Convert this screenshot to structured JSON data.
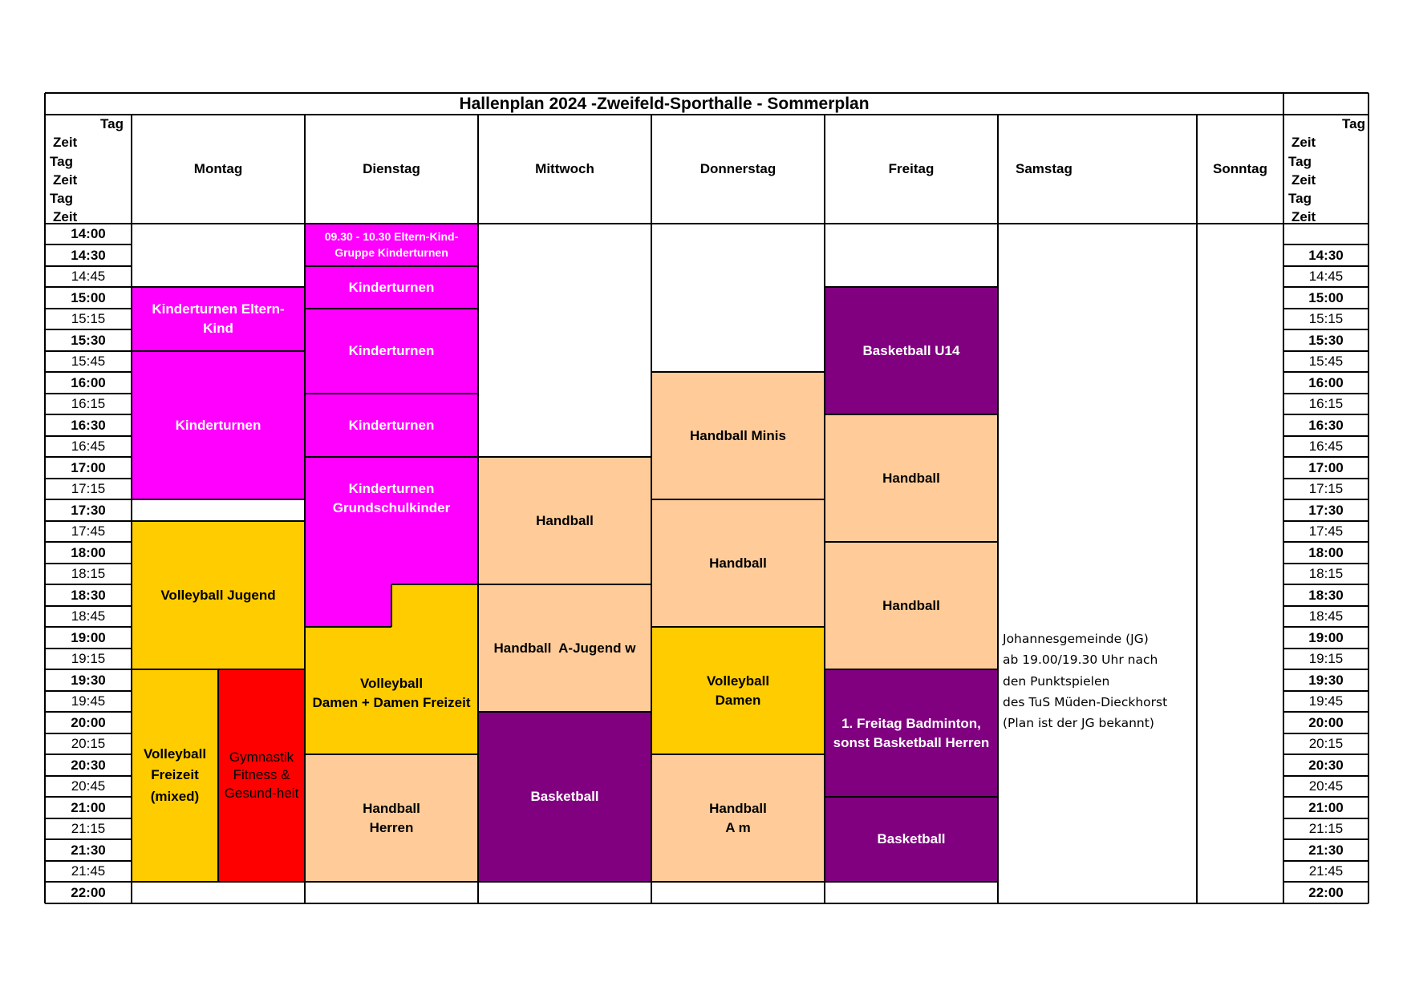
{
  "title": "Hallenplan 2024 -Zweifeld-Sporthalle - Sommerplan",
  "corner_left": [
    "Tag",
    "Zeit",
    "Tag",
    "Zeit",
    "Tag",
    "Zeit"
  ],
  "corner_right": [
    "Tag",
    "Zeit",
    "Tag",
    "Zeit",
    "Tag",
    "Zeit"
  ],
  "days": [
    "Montag",
    "Dienstag",
    "Mittwoch",
    "Donnerstag",
    "Freitag",
    "Samstag",
    "Sonntag"
  ],
  "times_left": [
    "14:00",
    "14:30",
    "14:45",
    "15:00",
    "15:15",
    "15:30",
    "15:45",
    "16:00",
    "16:15",
    "16:30",
    "16:45",
    "17:00",
    "17:15",
    "17:30",
    "17:45",
    "18:00",
    "18:15",
    "18:30",
    "18:45",
    "19:00",
    "19:15",
    "19:30",
    "19:45",
    "20:00",
    "20:15",
    "20:30",
    "20:45",
    "21:00",
    "21:15",
    "21:30",
    "21:45",
    "22:00"
  ],
  "times_right": [
    "",
    "14:30",
    "14:45",
    "15:00",
    "15:15",
    "15:30",
    "15:45",
    "16:00",
    "16:15",
    "16:30",
    "16:45",
    "17:00",
    "17:15",
    "17:30",
    "17:45",
    "18:00",
    "18:15",
    "18:30",
    "18:45",
    "19:00",
    "19:15",
    "19:30",
    "19:45",
    "20:00",
    "20:15",
    "20:30",
    "20:45",
    "21:00",
    "21:15",
    "21:30",
    "21:45",
    "22:00"
  ],
  "colors": {
    "magenta": "#ff00ff",
    "purple": "#800080",
    "peach": "#ffcc99",
    "yellow": "#ffcc00",
    "red": "#ff0000"
  },
  "blocks": [
    {
      "name": "mo-eltern-kind",
      "lines": [
        "Kinderturnen Eltern-",
        "Kind"
      ],
      "color": "magenta",
      "text": "white"
    },
    {
      "name": "mo-kinderturnen",
      "lines": [
        "Kinderturnen"
      ],
      "color": "magenta",
      "text": "white"
    },
    {
      "name": "mo-volleyball-jugend",
      "lines": [
        "Volleyball Jugend"
      ],
      "color": "yellow",
      "text": "black"
    },
    {
      "name": "mo-volleyball-freizeit",
      "lines": [
        "Volleyball",
        "Freizeit",
        "(mixed)"
      ],
      "color": "yellow",
      "text": "black"
    },
    {
      "name": "mo-gymnastik",
      "lines": [
        "Gymnastik",
        "Fitness &",
        "Gesund-heit"
      ],
      "color": "red",
      "text": "black"
    },
    {
      "name": "di-eltern-kind-gruppe",
      "lines": [
        "09.30 - 10.30 Eltern-Kind-",
        "Gruppe Kinderturnen"
      ],
      "color": "magenta",
      "text": "white"
    },
    {
      "name": "di-kinderturnen-1",
      "lines": [
        "Kinderturnen"
      ],
      "color": "magenta",
      "text": "white"
    },
    {
      "name": "di-kinderturnen-2",
      "lines": [
        "Kinderturnen"
      ],
      "color": "magenta",
      "text": "white"
    },
    {
      "name": "di-kinderturnen-3",
      "lines": [
        "Kinderturnen"
      ],
      "color": "magenta",
      "text": "white"
    },
    {
      "name": "di-grundschulkinder",
      "lines": [
        "Kinderturnen",
        "Grundschulkinder"
      ],
      "color": "magenta",
      "text": "white"
    },
    {
      "name": "di-volleyball-damen",
      "lines": [
        "Volleyball",
        "Damen + Damen Freizeit"
      ],
      "color": "yellow",
      "text": "black"
    },
    {
      "name": "di-handball-herren",
      "lines": [
        "Handball",
        "Herren"
      ],
      "color": "peach",
      "text": "black"
    },
    {
      "name": "mi-handball",
      "lines": [
        "Handball"
      ],
      "color": "peach",
      "text": "black"
    },
    {
      "name": "mi-handball-a-jugend",
      "lines": [
        "Handball  A-Jugend w"
      ],
      "color": "peach",
      "text": "black"
    },
    {
      "name": "mi-basketball",
      "lines": [
        "Basketball"
      ],
      "color": "purple",
      "text": "white"
    },
    {
      "name": "do-handball-minis",
      "lines": [
        "Handball Minis"
      ],
      "color": "peach",
      "text": "black"
    },
    {
      "name": "do-handball",
      "lines": [
        "Handball"
      ],
      "color": "peach",
      "text": "black"
    },
    {
      "name": "do-volleyball-damen",
      "lines": [
        "Volleyball",
        "Damen"
      ],
      "color": "yellow",
      "text": "black"
    },
    {
      "name": "do-handball-am",
      "lines": [
        "Handball",
        "A m"
      ],
      "color": "peach",
      "text": "black"
    },
    {
      "name": "fr-basketball-u14",
      "lines": [
        "Basketball U14"
      ],
      "color": "purple",
      "text": "white"
    },
    {
      "name": "fr-handball-1",
      "lines": [
        "Handball"
      ],
      "color": "peach",
      "text": "black"
    },
    {
      "name": "fr-handball-2",
      "lines": [
        "Handball"
      ],
      "color": "peach",
      "text": "black"
    },
    {
      "name": "fr-badminton",
      "lines": [
        "1. Freitag Badminton,",
        "sonst Basketball Herren"
      ],
      "color": "purple",
      "text": "white"
    },
    {
      "name": "fr-basketball",
      "lines": [
        "Basketball"
      ],
      "color": "purple",
      "text": "white"
    }
  ],
  "saturday_note": [
    "Johannesgemeinde (JG)",
    "ab 19.00/19.30 Uhr nach",
    "den Punktspielen",
    "des TuS Müden-Dieckhorst",
    "(Plan ist der JG bekannt)"
  ]
}
